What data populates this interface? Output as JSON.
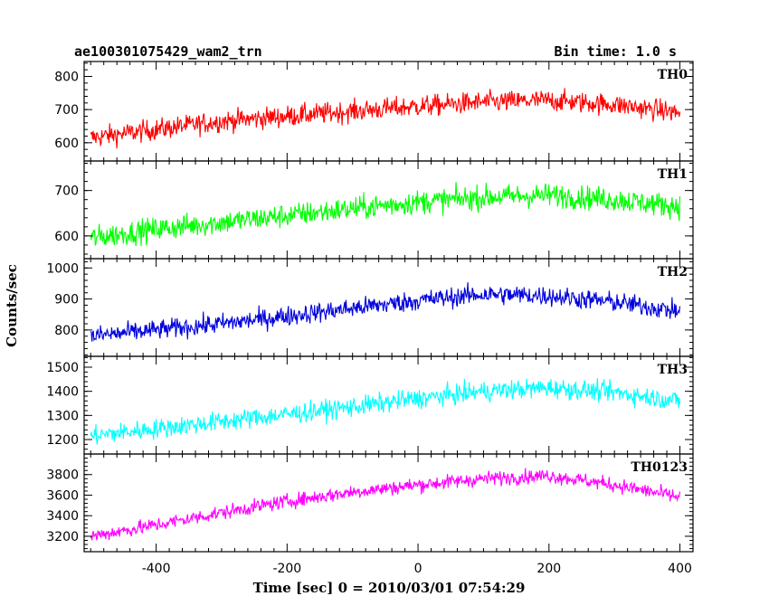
{
  "header": {
    "title": "ae100301075429_wam2_trn",
    "bin_time": "Bin time: 1.0 s"
  },
  "chart_data": {
    "type": "line",
    "title": "ae100301075429_wam2_trn",
    "subtitle": "Bin time: 1.0 s",
    "xlabel": "Time [sec] 0 = 2010/03/01 07:54:29",
    "ylabel": "Counts/sec",
    "xlim": [
      -510,
      420
    ],
    "x_range": [
      -500,
      400
    ],
    "x_ticks": [
      -400,
      -200,
      0,
      200,
      400
    ],
    "series": [
      {
        "name": "TH0",
        "color": "#ff0000",
        "ylim": [
          545,
          845
        ],
        "y_ticks": [
          600,
          700,
          800
        ],
        "trend_x": [
          -500,
          -400,
          -300,
          -200,
          -100,
          0,
          100,
          200,
          300,
          400
        ],
        "trend_y": [
          615,
          640,
          665,
          680,
          695,
          710,
          722,
          728,
          715,
          690
        ],
        "noise": 55
      },
      {
        "name": "TH1",
        "color": "#00ff00",
        "ylim": [
          550,
          765
        ],
        "y_ticks": [
          600,
          700
        ],
        "trend_x": [
          -500,
          -400,
          -300,
          -200,
          -100,
          0,
          100,
          200,
          300,
          400
        ],
        "trend_y": [
          595,
          615,
          630,
          645,
          660,
          675,
          685,
          690,
          680,
          665
        ],
        "noise": 45
      },
      {
        "name": "TH2",
        "color": "#0000dd",
        "ylim": [
          715,
          1030
        ],
        "y_ticks": [
          800,
          900,
          1000
        ],
        "trend_x": [
          -500,
          -400,
          -300,
          -200,
          -100,
          0,
          100,
          200,
          300,
          400
        ],
        "trend_y": [
          780,
          800,
          820,
          845,
          870,
          895,
          915,
          910,
          890,
          860
        ],
        "noise": 55
      },
      {
        "name": "TH3",
        "color": "#00ffff",
        "ylim": [
          1140,
          1545
        ],
        "y_ticks": [
          1200,
          1300,
          1400,
          1500
        ],
        "trend_x": [
          -500,
          -400,
          -300,
          -200,
          -100,
          0,
          100,
          200,
          300,
          400
        ],
        "trend_y": [
          1215,
          1245,
          1275,
          1305,
          1335,
          1370,
          1400,
          1415,
          1395,
          1360
        ],
        "noise": 70
      },
      {
        "name": "TH0123",
        "color": "#ff00ff",
        "ylim": [
          3050,
          4000
        ],
        "y_ticks": [
          3200,
          3400,
          3600,
          3800
        ],
        "trend_x": [
          -500,
          -400,
          -300,
          -200,
          -100,
          0,
          100,
          200,
          300,
          400
        ],
        "trend_y": [
          3200,
          3310,
          3430,
          3540,
          3630,
          3700,
          3760,
          3790,
          3700,
          3580
        ],
        "noise": 120
      }
    ]
  }
}
